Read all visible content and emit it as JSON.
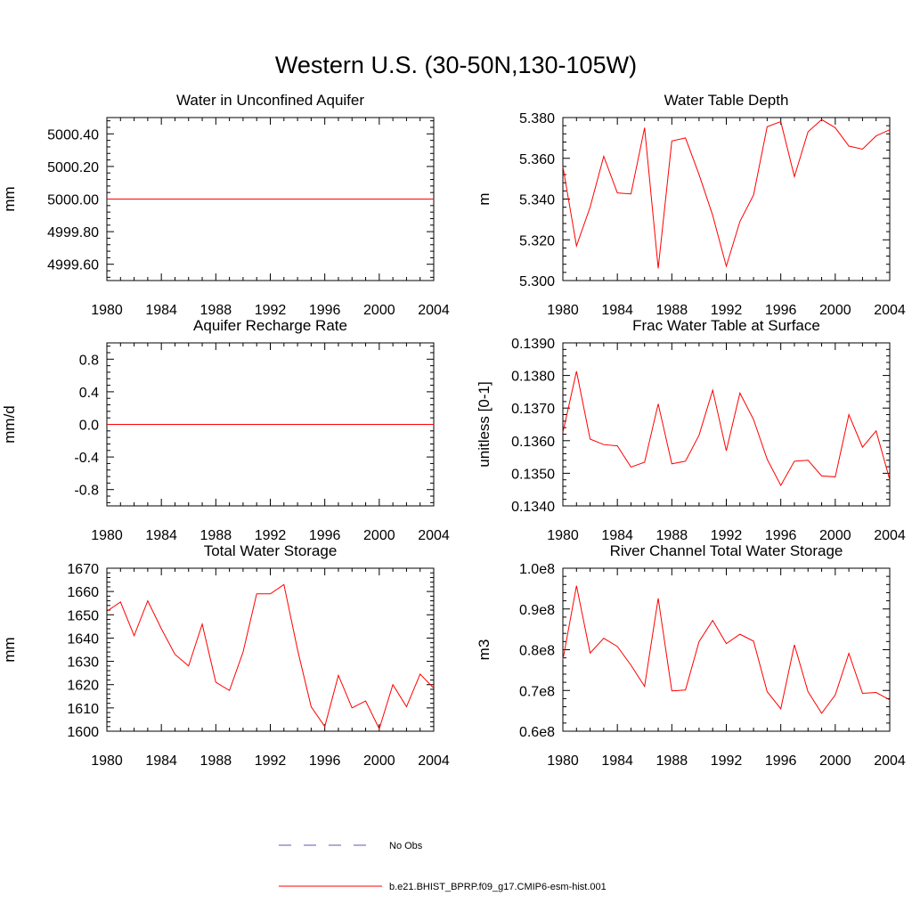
{
  "title": "Western U.S. (30-50N,130-105W)",
  "colors": {
    "model": "#ff0000",
    "obs": "#5a5ab4"
  },
  "legend": [
    {
      "label": "No Obs",
      "style": "dashed"
    },
    {
      "label": "b.e21.BHIST_BPRP.f09_g17.CMIP6-esm-hist.001",
      "style": "solid"
    }
  ],
  "chart_data": [
    {
      "type": "line",
      "title": "Water in Unconfined Aquifer",
      "ylabel": "mm",
      "xlim": [
        1980,
        2004
      ],
      "ylim": [
        4999.5,
        5000.5
      ],
      "xticks": [
        1980,
        1984,
        1988,
        1992,
        1996,
        2000,
        2004
      ],
      "yticks": [
        4999.6,
        4999.8,
        5000.0,
        5000.2,
        5000.4
      ],
      "ytick_labels": [
        "4999.60",
        "4999.80",
        "5000.00",
        "5000.20",
        "5000.40"
      ],
      "x": [
        1980,
        1981,
        1982,
        1983,
        1984,
        1985,
        1986,
        1987,
        1988,
        1989,
        1990,
        1991,
        1992,
        1993,
        1994,
        1995,
        1996,
        1997,
        1998,
        1999,
        2000,
        2001,
        2002,
        2003,
        2004
      ],
      "y": [
        5000.0,
        5000.0,
        5000.0,
        5000.0,
        5000.0,
        5000.0,
        5000.0,
        5000.0,
        5000.0,
        5000.0,
        5000.0,
        5000.0,
        5000.0,
        5000.0,
        5000.0,
        5000.0,
        5000.0,
        5000.0,
        5000.0,
        5000.0,
        5000.0,
        5000.0,
        5000.0,
        5000.0,
        5000.0
      ]
    },
    {
      "type": "line",
      "title": "Water Table Depth",
      "ylabel": "m",
      "xlim": [
        1980,
        2004
      ],
      "ylim": [
        5.3,
        5.38
      ],
      "xticks": [
        1980,
        1984,
        1988,
        1992,
        1996,
        2000,
        2004
      ],
      "yticks": [
        5.3,
        5.32,
        5.34,
        5.36,
        5.38
      ],
      "ytick_labels": [
        "5.300",
        "5.320",
        "5.340",
        "5.360",
        "5.380"
      ],
      "x": [
        1980,
        1981,
        1982,
        1983,
        1984,
        1985,
        1986,
        1987,
        1988,
        1989,
        1990,
        1991,
        1992,
        1993,
        1994,
        1995,
        1996,
        1997,
        1998,
        1999,
        2000,
        2001,
        2002,
        2003,
        2004
      ],
      "y": [
        5.356,
        5.317,
        5.336,
        5.361,
        5.343,
        5.3425,
        5.375,
        5.306,
        5.3685,
        5.37,
        5.352,
        5.332,
        5.307,
        5.329,
        5.342,
        5.3755,
        5.378,
        5.351,
        5.373,
        5.379,
        5.375,
        5.366,
        5.3645,
        5.371,
        5.374
      ]
    },
    {
      "type": "line",
      "title": "Aquifer Recharge Rate",
      "ylabel": "mm/d",
      "xlim": [
        1980,
        2004
      ],
      "ylim": [
        -1.0,
        1.0
      ],
      "xticks": [
        1980,
        1984,
        1988,
        1992,
        1996,
        2000,
        2004
      ],
      "yticks": [
        -0.8,
        -0.4,
        0.0,
        0.4,
        0.8
      ],
      "ytick_labels": [
        "-0.8",
        "-0.4",
        "0.0",
        "0.4",
        "0.8"
      ],
      "x": [
        1980,
        1981,
        1982,
        1983,
        1984,
        1985,
        1986,
        1987,
        1988,
        1989,
        1990,
        1991,
        1992,
        1993,
        1994,
        1995,
        1996,
        1997,
        1998,
        1999,
        2000,
        2001,
        2002,
        2003,
        2004
      ],
      "y": [
        0.0,
        0.0,
        0.0,
        0.0,
        0.0,
        0.0,
        0.0,
        0.0,
        0.0,
        0.0,
        0.0,
        0.0,
        0.0,
        0.0,
        0.0,
        0.0,
        0.0,
        0.0,
        0.0,
        0.0,
        0.0,
        0.0,
        0.0,
        0.0,
        0.0
      ]
    },
    {
      "type": "line",
      "title": "Frac Water Table at Surface",
      "ylabel": "unitless [0-1]",
      "xlim": [
        1980,
        2004
      ],
      "ylim": [
        0.134,
        0.139
      ],
      "xticks": [
        1980,
        1984,
        1988,
        1992,
        1996,
        2000,
        2004
      ],
      "yticks": [
        0.134,
        0.135,
        0.136,
        0.137,
        0.138,
        0.139
      ],
      "ytick_labels": [
        "0.1340",
        "0.1350",
        "0.1360",
        "0.1370",
        "0.1380",
        "0.1390"
      ],
      "x": [
        1980,
        1981,
        1982,
        1983,
        1984,
        1985,
        1986,
        1987,
        1988,
        1989,
        1990,
        1991,
        1992,
        1993,
        1994,
        1995,
        1996,
        1997,
        1998,
        1999,
        2000,
        2001,
        2002,
        2003,
        2004
      ],
      "y": [
        0.13625,
        0.13813,
        0.13605,
        0.13588,
        0.13584,
        0.13519,
        0.13534,
        0.13713,
        0.13529,
        0.13537,
        0.13617,
        0.13755,
        0.13569,
        0.13746,
        0.13665,
        0.13543,
        0.13463,
        0.13537,
        0.1354,
        0.13492,
        0.13489,
        0.1368,
        0.1358,
        0.1363,
        0.1348
      ]
    },
    {
      "type": "line",
      "title": "Total Water Storage",
      "ylabel": "mm",
      "xlim": [
        1980,
        2004
      ],
      "ylim": [
        1600,
        1670
      ],
      "xticks": [
        1980,
        1984,
        1988,
        1992,
        1996,
        2000,
        2004
      ],
      "yticks": [
        1600,
        1610,
        1620,
        1630,
        1640,
        1650,
        1660,
        1670
      ],
      "ytick_labels": [
        "1600",
        "1610",
        "1620",
        "1630",
        "1640",
        "1650",
        "1660",
        "1670"
      ],
      "x": [
        1980,
        1981,
        1982,
        1983,
        1984,
        1985,
        1986,
        1987,
        1988,
        1989,
        1990,
        1991,
        1992,
        1993,
        1994,
        1995,
        1996,
        1997,
        1998,
        1999,
        2000,
        2001,
        2002,
        2003,
        2004
      ],
      "y": [
        1651.5,
        1655.5,
        1641,
        1656,
        1644,
        1633,
        1628,
        1646,
        1621,
        1617.5,
        1634,
        1659,
        1659,
        1663,
        1635,
        1610.5,
        1602,
        1624,
        1610,
        1613,
        1601,
        1620,
        1610.5,
        1624.5,
        1618.5
      ]
    },
    {
      "type": "line",
      "title": "River Channel Total Water Storage",
      "ylabel": "m3",
      "xlim": [
        1980,
        2004
      ],
      "ylim": [
        60000000.0,
        100000000.0
      ],
      "xticks": [
        1980,
        1984,
        1988,
        1992,
        1996,
        2000,
        2004
      ],
      "yticks": [
        60000000.0,
        70000000.0,
        80000000.0,
        90000000.0,
        100000000.0
      ],
      "ytick_labels": [
        "0.6e8",
        "0.7e8",
        "0.8e8",
        "0.9e8",
        "1.0e8"
      ],
      "x": [
        1980,
        1981,
        1982,
        1983,
        1984,
        1985,
        1986,
        1987,
        1988,
        1989,
        1990,
        1991,
        1992,
        1993,
        1994,
        1995,
        1996,
        1997,
        1998,
        1999,
        2000,
        2001,
        2002,
        2003,
        2004
      ],
      "y": [
        77500000.0,
        95700000.0,
        79200000.0,
        82800000.0,
        80800000.0,
        76200000.0,
        71000000.0,
        92600000.0,
        69900000.0,
        70100000.0,
        82000000.0,
        87200000.0,
        81500000.0,
        83800000.0,
        82100000.0,
        69700000.0,
        65500000.0,
        81200000.0,
        69700000.0,
        64400000.0,
        68900000.0,
        79100000.0,
        69300000.0,
        69500000.0,
        67700000.0
      ]
    }
  ]
}
